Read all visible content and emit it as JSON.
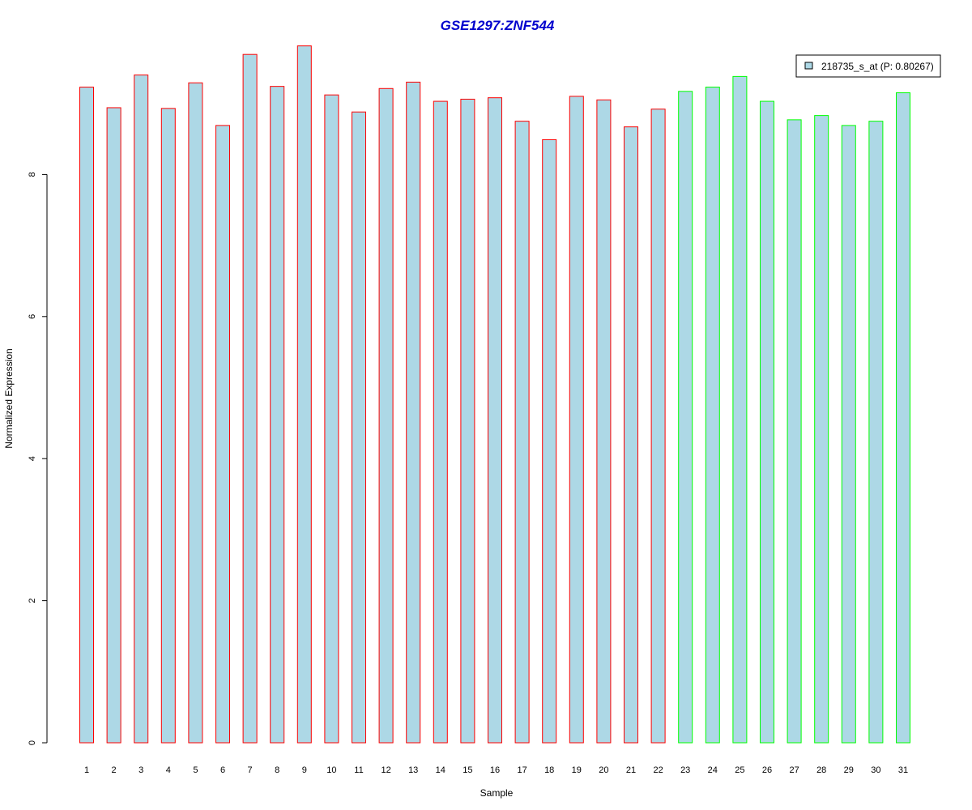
{
  "chart_data": {
    "type": "bar",
    "title": "GSE1297:ZNF544",
    "xlabel": "Sample",
    "ylabel": "Normalized Expression",
    "ylim": [
      0,
      10
    ],
    "yticks": [
      0,
      2,
      4,
      6,
      8
    ],
    "categories": [
      "1",
      "2",
      "3",
      "4",
      "5",
      "6",
      "7",
      "8",
      "9",
      "10",
      "11",
      "12",
      "13",
      "14",
      "15",
      "16",
      "17",
      "18",
      "19",
      "20",
      "21",
      "22",
      "23",
      "24",
      "25",
      "26",
      "27",
      "28",
      "29",
      "30",
      "31"
    ],
    "series": [
      {
        "name": "218735_s_at (P: 0.80267)",
        "values": [
          9.23,
          8.94,
          9.4,
          8.93,
          9.29,
          8.69,
          9.69,
          9.24,
          9.81,
          9.12,
          8.88,
          9.21,
          9.3,
          9.03,
          9.06,
          9.08,
          8.75,
          8.49,
          9.1,
          9.05,
          8.67,
          8.92,
          9.17,
          9.23,
          9.38,
          9.03,
          8.77,
          8.83,
          8.69,
          8.75,
          9.15
        ]
      }
    ],
    "groups": [
      "red",
      "red",
      "red",
      "red",
      "red",
      "red",
      "red",
      "red",
      "red",
      "red",
      "red",
      "red",
      "red",
      "red",
      "red",
      "red",
      "red",
      "red",
      "red",
      "red",
      "red",
      "red",
      "green",
      "green",
      "green",
      "green",
      "green",
      "green",
      "green",
      "green",
      "green"
    ],
    "legend_placement": "top-right",
    "grid": false,
    "colors": {
      "bar_fill": "#ADD8E6",
      "red_border": "#FF0000",
      "green_border": "#00FF00",
      "title": "#0000CD"
    }
  }
}
